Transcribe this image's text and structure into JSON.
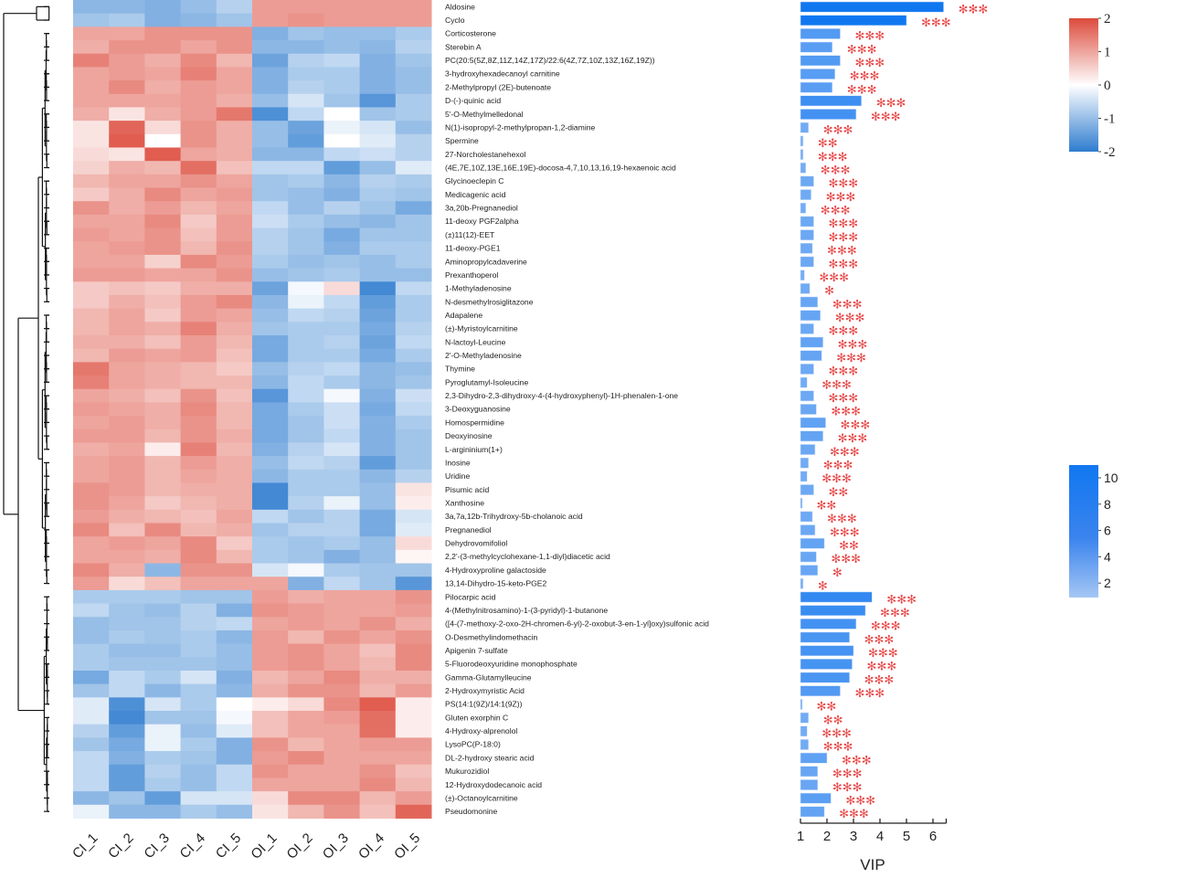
{
  "chart_data": {
    "type": "heatmap",
    "title": "",
    "columns": [
      "CI_1",
      "CI_2",
      "CI_3",
      "CI_4",
      "CI_5",
      "OI_1",
      "OI_2",
      "OI_3",
      "OI_4",
      "OI_5"
    ],
    "rows": [
      {
        "name": "Aldosine",
        "values": [
          -1.1,
          -1.1,
          -1.2,
          -1.0,
          -0.7,
          1.1,
          1.1,
          1.1,
          1.1,
          1.1
        ],
        "vip": 6.4,
        "sig": "***"
      },
      {
        "name": "Cyclo",
        "values": [
          -0.9,
          -0.8,
          -1.2,
          -1.1,
          -0.9,
          1.1,
          1.2,
          1.1,
          1.1,
          1.1
        ],
        "vip": 5.0,
        "sig": "***"
      },
      {
        "name": "Corticosterone",
        "values": [
          1.0,
          1.0,
          1.2,
          1.2,
          1.2,
          -1.2,
          -0.9,
          -1.0,
          -1.0,
          -0.8
        ],
        "vip": 2.5,
        "sig": "***"
      },
      {
        "name": "Sterebin A",
        "values": [
          0.9,
          1.2,
          1.2,
          1.0,
          1.2,
          -1.1,
          -1.1,
          -1.0,
          -1.1,
          -0.7
        ],
        "vip": 2.2,
        "sig": "***"
      },
      {
        "name": "PC(20:5(5Z,8Z,11Z,14Z,17Z)/22:6(4Z,7Z,10Z,13Z,16Z,19Z))",
        "values": [
          1.4,
          1.1,
          0.9,
          1.3,
          0.8,
          -1.4,
          -0.7,
          -0.6,
          -1.2,
          -0.9
        ],
        "vip": 2.5,
        "sig": "***"
      },
      {
        "name": "3-hydroxyhexadecanoyl carnitine",
        "values": [
          1.0,
          1.1,
          1.0,
          1.4,
          1.0,
          -1.2,
          -0.8,
          -0.8,
          -1.2,
          -1.0
        ],
        "vip": 2.3,
        "sig": "***"
      },
      {
        "name": "2-Methylpropyl (2E)-butenoate",
        "values": [
          1.0,
          1.3,
          0.9,
          1.1,
          1.0,
          -1.2,
          -0.7,
          -0.8,
          -1.2,
          -1.0
        ],
        "vip": 2.2,
        "sig": "***"
      },
      {
        "name": "D-(-)-quinic acid",
        "values": [
          1.0,
          1.0,
          1.0,
          1.1,
          0.9,
          -1.0,
          -0.4,
          -0.9,
          -1.6,
          -0.8
        ],
        "vip": 3.3,
        "sig": "***"
      },
      {
        "name": "5'-O-Methylmelledonal",
        "values": [
          0.9,
          0.3,
          0.9,
          1.1,
          1.5,
          -1.7,
          -0.6,
          0.0,
          -0.9,
          -0.8
        ],
        "vip": 3.1,
        "sig": "***"
      },
      {
        "name": "N(1)-isopropyl-2-methylpropan-1,2-diamine",
        "values": [
          0.3,
          1.7,
          0.4,
          1.2,
          0.9,
          -1.0,
          -1.4,
          -0.2,
          -0.4,
          -1.0
        ],
        "vip": 1.3,
        "sig": "***"
      },
      {
        "name": "Spermine",
        "values": [
          0.3,
          1.8,
          0.0,
          1.2,
          0.9,
          -1.0,
          -1.5,
          0.0,
          -0.3,
          -0.7
        ],
        "vip": 1.1,
        "sig": "**"
      },
      {
        "name": "27-Norcholestanehexol",
        "values": [
          0.4,
          0.3,
          1.8,
          1.0,
          0.9,
          -1.1,
          -1.1,
          -0.6,
          -0.5,
          -0.7
        ],
        "vip": 1.1,
        "sig": "***"
      },
      {
        "name": "(4E,7E,10Z,13E,16E,19E)-docosa-4,7,10,13,16,19-hexaenoic acid",
        "values": [
          0.5,
          0.9,
          0.8,
          1.6,
          0.7,
          -0.6,
          -0.6,
          -1.5,
          -1.0,
          -0.3
        ],
        "vip": 1.2,
        "sig": "***"
      },
      {
        "name": "Glycinoeclepin C",
        "values": [
          0.8,
          1.0,
          1.0,
          1.2,
          1.0,
          -0.9,
          -0.8,
          -1.1,
          -0.7,
          -0.8
        ],
        "vip": 1.5,
        "sig": "***"
      },
      {
        "name": "Medicagenic acid",
        "values": [
          0.6,
          0.9,
          1.3,
          1.0,
          1.1,
          -0.9,
          -1.0,
          -1.2,
          -0.8,
          -0.9
        ],
        "vip": 1.4,
        "sig": "***"
      },
      {
        "name": "3a,20b-Pregnanediol",
        "values": [
          1.2,
          0.9,
          1.1,
          0.8,
          1.0,
          -0.6,
          -1.0,
          -0.7,
          -0.9,
          -1.3
        ],
        "vip": 1.2,
        "sig": "***"
      },
      {
        "name": "11-deoxy PGF2alpha",
        "values": [
          1.0,
          1.0,
          1.3,
          0.6,
          1.1,
          -0.5,
          -0.8,
          -1.0,
          -1.1,
          -0.9
        ],
        "vip": 1.5,
        "sig": "***"
      },
      {
        "name": "(±)11(12)-EET",
        "values": [
          1.1,
          1.0,
          1.2,
          0.7,
          1.1,
          -0.7,
          -0.9,
          -1.3,
          -0.9,
          -0.9
        ],
        "vip": 1.5,
        "sig": "***"
      },
      {
        "name": "11-deoxy-PGE1",
        "values": [
          1.0,
          1.1,
          1.2,
          0.8,
          1.2,
          -0.7,
          -0.9,
          -1.2,
          -0.8,
          -0.8
        ],
        "vip": 1.45,
        "sig": "***"
      },
      {
        "name": "Aminopropylcadaverine",
        "values": [
          1.0,
          1.0,
          0.5,
          1.3,
          1.1,
          -0.8,
          -1.0,
          -0.9,
          -1.0,
          -0.8
        ],
        "vip": 1.5,
        "sig": "***"
      },
      {
        "name": "Prexanthoperol",
        "values": [
          1.1,
          1.1,
          1.0,
          1.0,
          1.2,
          -1.0,
          -0.9,
          -0.8,
          -1.0,
          -1.0
        ],
        "vip": 1.15,
        "sig": "***"
      },
      {
        "name": "1-Methyladenosine",
        "values": [
          0.6,
          0.7,
          0.6,
          0.9,
          0.9,
          -1.4,
          -0.1,
          0.4,
          -1.8,
          -0.6
        ],
        "vip": 1.35,
        "sig": "*"
      },
      {
        "name": "N-desmethylrosiglitazone",
        "values": [
          0.6,
          0.9,
          0.7,
          1.1,
          1.3,
          -1.1,
          -0.2,
          -0.6,
          -1.5,
          -0.8
        ],
        "vip": 1.65,
        "sig": "***"
      },
      {
        "name": "Adapalene",
        "values": [
          0.8,
          1.0,
          0.6,
          1.1,
          1.0,
          -1.0,
          -0.6,
          -0.7,
          -1.4,
          -0.8
        ],
        "vip": 1.75,
        "sig": "***"
      },
      {
        "name": "(±)-Myristoylcarnitine",
        "values": [
          0.8,
          1.0,
          0.9,
          1.4,
          0.9,
          -0.9,
          -0.8,
          -0.8,
          -1.3,
          -0.7
        ],
        "vip": 1.5,
        "sig": "***"
      },
      {
        "name": "N-lactoyl-Leucine",
        "values": [
          0.9,
          0.9,
          0.7,
          1.1,
          0.8,
          -1.3,
          -0.8,
          -0.7,
          -1.4,
          -0.6
        ],
        "vip": 1.85,
        "sig": "***"
      },
      {
        "name": "2'-O-Methyladenosine",
        "values": [
          0.8,
          1.1,
          1.0,
          1.1,
          0.7,
          -1.3,
          -0.8,
          -0.8,
          -1.3,
          -0.8
        ],
        "vip": 1.8,
        "sig": "***"
      },
      {
        "name": "Thymine",
        "values": [
          1.5,
          1.0,
          0.9,
          0.8,
          0.6,
          -1.0,
          -0.7,
          -0.6,
          -1.1,
          -1.0
        ],
        "vip": 1.5,
        "sig": "***"
      },
      {
        "name": "Pyroglutamyl-Isoleucine",
        "values": [
          1.4,
          1.0,
          0.9,
          0.8,
          0.8,
          -1.1,
          -0.6,
          -0.8,
          -1.1,
          -0.9
        ],
        "vip": 1.25,
        "sig": "***"
      },
      {
        "name": "2,3-Dihydro-2,3-dihydroxy-4-(4-hydroxyphenyl)-1H-phenalen-1-one",
        "values": [
          1.0,
          0.9,
          0.7,
          1.2,
          0.7,
          -1.6,
          -0.6,
          -0.1,
          -1.2,
          -0.5
        ],
        "vip": 1.5,
        "sig": "***"
      },
      {
        "name": "3-Deoxyguanosine",
        "values": [
          1.1,
          1.0,
          0.9,
          1.3,
          0.8,
          -1.3,
          -0.8,
          -0.5,
          -1.3,
          -0.6
        ],
        "vip": 1.6,
        "sig": "***"
      },
      {
        "name": "Homospermidine",
        "values": [
          1.0,
          1.1,
          0.9,
          1.2,
          0.8,
          -1.3,
          -0.9,
          -0.5,
          -1.2,
          -0.8
        ],
        "vip": 1.95,
        "sig": "***"
      },
      {
        "name": "Deoxyinosine",
        "values": [
          1.1,
          1.1,
          0.8,
          1.2,
          0.9,
          -1.3,
          -0.9,
          -0.6,
          -1.2,
          -0.9
        ],
        "vip": 1.85,
        "sig": "***"
      },
      {
        "name": "L-argininium(1+)",
        "values": [
          0.9,
          1.0,
          0.2,
          1.4,
          0.8,
          -1.2,
          -0.7,
          -0.4,
          -1.2,
          -0.9
        ],
        "vip": 1.55,
        "sig": "***"
      },
      {
        "name": "Inosine",
        "values": [
          1.0,
          1.1,
          0.8,
          1.1,
          0.9,
          -1.0,
          -0.6,
          -0.7,
          -1.5,
          -0.9
        ],
        "vip": 1.3,
        "sig": "***"
      },
      {
        "name": "Uridine",
        "values": [
          1.0,
          1.1,
          0.8,
          1.0,
          0.9,
          -1.1,
          -0.8,
          -0.8,
          -1.1,
          -0.7
        ],
        "vip": 1.25,
        "sig": "***"
      },
      {
        "name": "Pisumic acid",
        "values": [
          1.2,
          1.1,
          0.8,
          0.9,
          0.9,
          -1.8,
          -0.8,
          -0.8,
          -1.0,
          0.3
        ],
        "vip": 1.5,
        "sig": "**"
      },
      {
        "name": "Xanthosine",
        "values": [
          1.2,
          1.0,
          0.6,
          0.8,
          0.9,
          -1.8,
          -0.7,
          -0.2,
          -1.0,
          0.2
        ],
        "vip": 1.05,
        "sig": "**"
      },
      {
        "name": "3a,7a,12b-Trihydroxy-5b-cholanoic acid",
        "values": [
          1.1,
          0.9,
          0.8,
          0.7,
          1.0,
          -0.6,
          -0.9,
          -0.7,
          -1.3,
          -0.4
        ],
        "vip": 1.45,
        "sig": "***"
      },
      {
        "name": "Pregnanediol",
        "values": [
          1.3,
          0.7,
          1.3,
          0.8,
          0.9,
          -0.9,
          -0.7,
          -0.7,
          -1.3,
          -0.3
        ],
        "vip": 1.55,
        "sig": "***"
      },
      {
        "name": "Dehydrovomifoliol",
        "values": [
          1.0,
          1.1,
          1.0,
          1.3,
          0.6,
          -0.8,
          -0.9,
          -0.8,
          -1.0,
          0.4
        ],
        "vip": 1.9,
        "sig": "**"
      },
      {
        "name": "2,2'-(3-methylcyclohexane-1,1-diyl)diacetic acid",
        "values": [
          1.0,
          1.0,
          0.9,
          1.3,
          0.8,
          -0.8,
          -0.9,
          -1.2,
          -1.0,
          0.1
        ],
        "vip": 1.6,
        "sig": "***"
      },
      {
        "name": "4-Hydroxyproline galactoside",
        "values": [
          1.3,
          0.9,
          -1.1,
          1.2,
          1.2,
          -0.4,
          -0.1,
          -0.8,
          -0.9,
          -0.9
        ],
        "vip": 1.65,
        "sig": "*"
      },
      {
        "name": "13,14-Dihydro-15-keto-PGE2",
        "values": [
          1.1,
          0.4,
          0.7,
          1.0,
          1.0,
          1.0,
          -1.2,
          -0.6,
          -0.9,
          -1.6
        ],
        "vip": 1.1,
        "sig": "*"
      },
      {
        "name": "Pilocarpic acid",
        "values": [
          -0.8,
          -0.8,
          -0.8,
          -0.9,
          -0.9,
          1.1,
          0.9,
          1.0,
          1.0,
          1.2
        ],
        "vip": 3.7,
        "sig": "***"
      },
      {
        "name": "4-(Methylnitrosamino)-1-(3-pyridyl)-1-butanone",
        "values": [
          -0.6,
          -0.9,
          -1.0,
          -0.7,
          -1.2,
          1.2,
          1.1,
          1.0,
          1.0,
          1.1
        ],
        "vip": 3.45,
        "sig": "***"
      },
      {
        "name": "([4-(7-methoxy-2-oxo-2H-chromen-6-yl)-2-oxobut-3-en-1-yl]oxy)sulfonic acid",
        "values": [
          -1.0,
          -0.9,
          -0.9,
          -0.7,
          -0.6,
          1.0,
          1.1,
          1.0,
          1.2,
          0.9
        ],
        "vip": 3.1,
        "sig": "***"
      },
      {
        "name": "O-Desmethylindomethacin",
        "values": [
          -1.0,
          -0.8,
          -0.9,
          -0.8,
          -1.1,
          1.1,
          0.8,
          1.2,
          1.0,
          1.2
        ],
        "vip": 2.85,
        "sig": "***"
      },
      {
        "name": "Apigenin 7-sulfate",
        "values": [
          -0.8,
          -1.0,
          -1.0,
          -0.8,
          -1.0,
          1.1,
          1.2,
          1.0,
          0.7,
          1.3
        ],
        "vip": 3.0,
        "sig": "***"
      },
      {
        "name": "5-Fluorodeoxyuridine monophosphate",
        "values": [
          -0.8,
          -0.9,
          -0.9,
          -0.9,
          -1.0,
          1.1,
          1.2,
          1.0,
          0.8,
          1.3
        ],
        "vip": 2.95,
        "sig": "***"
      },
      {
        "name": "Gamma-Glutamylleucine",
        "values": [
          -1.3,
          -0.6,
          -0.8,
          -0.4,
          -1.2,
          0.8,
          1.0,
          1.3,
          0.9,
          0.9
        ],
        "vip": 2.85,
        "sig": "***"
      },
      {
        "name": "2-Hydroxymyristic Acid",
        "values": [
          -0.9,
          -0.6,
          -1.1,
          -0.8,
          -1.1,
          0.9,
          1.2,
          1.2,
          0.8,
          1.1
        ],
        "vip": 2.5,
        "sig": "***"
      },
      {
        "name": "PS(14:1(9Z)/14:1(9Z))",
        "values": [
          -0.3,
          -1.7,
          -0.4,
          -0.8,
          0.0,
          0.2,
          0.4,
          1.3,
          1.8,
          0.2
        ],
        "vip": 1.05,
        "sig": "**"
      },
      {
        "name": "Gluten exorphin C",
        "values": [
          -0.3,
          -1.8,
          -0.9,
          -0.9,
          -0.1,
          0.7,
          1.0,
          1.1,
          1.6,
          0.2
        ],
        "vip": 1.3,
        "sig": "**"
      },
      {
        "name": "4-Hydroxy-alprenolol",
        "values": [
          -0.7,
          -1.5,
          -0.2,
          -1.0,
          -0.3,
          0.7,
          1.0,
          1.0,
          1.6,
          0.2
        ],
        "vip": 1.25,
        "sig": "***"
      },
      {
        "name": "LysoPC(P-18:0)",
        "values": [
          -0.9,
          -1.3,
          -0.2,
          -0.8,
          -1.2,
          1.2,
          0.8,
          1.0,
          1.1,
          1.1
        ],
        "vip": 1.3,
        "sig": "***"
      },
      {
        "name": "DL-2-hydroxy stearic acid",
        "values": [
          -0.6,
          -1.2,
          -0.8,
          -0.9,
          -1.2,
          1.1,
          1.3,
          1.0,
          1.0,
          1.0
        ],
        "vip": 2.0,
        "sig": "***"
      },
      {
        "name": "Mukurozidiol",
        "values": [
          -0.6,
          -1.5,
          -0.7,
          -1.0,
          -0.6,
          1.2,
          1.0,
          1.0,
          1.2,
          0.7
        ],
        "vip": 1.65,
        "sig": "***"
      },
      {
        "name": "12-Hydroxydodecanoic acid",
        "values": [
          -0.6,
          -1.5,
          -0.8,
          -1.0,
          -0.6,
          1.0,
          1.0,
          1.0,
          1.3,
          0.8
        ],
        "vip": 1.65,
        "sig": "***"
      },
      {
        "name": "(±)-Octanoylcarnitine",
        "values": [
          -1.1,
          -0.9,
          -1.5,
          -0.4,
          -0.4,
          0.4,
          1.3,
          1.3,
          0.8,
          1.1
        ],
        "vip": 2.15,
        "sig": "***"
      },
      {
        "name": "Pseudomonine",
        "values": [
          -0.2,
          -1.1,
          -1.1,
          -0.8,
          -1.0,
          0.3,
          0.8,
          1.2,
          0.7,
          1.7
        ],
        "vip": 1.9,
        "sig": "***"
      }
    ],
    "color_scale": {
      "min": -2,
      "max": 2,
      "low_color": "#2e7ccf",
      "mid_color": "#ffffff",
      "high_color": "#dc4b3c",
      "ticks": [
        "2",
        "1",
        "0",
        "-1",
        "-2"
      ]
    },
    "vip_bar": {
      "xlabel": "VIP",
      "xlim": [
        1,
        6.5
      ],
      "ticks": [
        "1",
        "2",
        "3",
        "4",
        "5",
        "6"
      ],
      "color_scale": {
        "min": 1,
        "max": 11,
        "low_color": "#9cc2f5",
        "high_color": "#1177f0",
        "ticks": [
          "10",
          "8",
          "6",
          "4",
          "2"
        ]
      }
    },
    "dendrogram": "row clustering tree (left side)"
  }
}
